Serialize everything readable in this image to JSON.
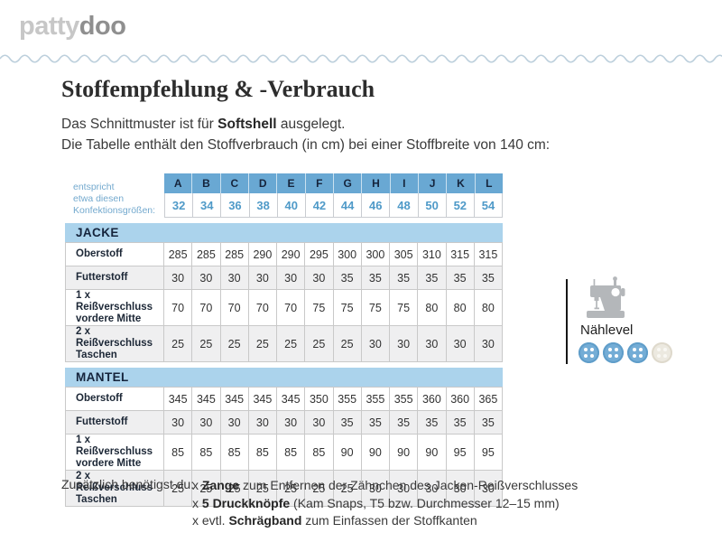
{
  "logo": {
    "part1": "patty",
    "part2": "doo"
  },
  "title": "Stoffempfehlung & -Verbrauch",
  "intro": {
    "line1_prefix": "Das Schnittmuster ist für ",
    "line1_bold": "Softshell",
    "line1_suffix": " ausgelegt.",
    "line2": "Die Tabelle enthält den Stoffverbrauch (in cm) bei einer Stoffbreite von 140 cm:"
  },
  "size_header": {
    "note_lines": [
      "entspricht",
      "etwa diesen",
      "Konfektionsgrößen:"
    ],
    "letters": [
      "A",
      "B",
      "C",
      "D",
      "E",
      "F",
      "G",
      "H",
      "I",
      "J",
      "K",
      "L"
    ],
    "sizes": [
      "32",
      "34",
      "36",
      "38",
      "40",
      "42",
      "44",
      "46",
      "48",
      "50",
      "52",
      "54"
    ]
  },
  "sections": [
    {
      "name": "JACKE",
      "rows": [
        {
          "label": "Oberstoff",
          "label2": "",
          "values": [
            285,
            285,
            285,
            290,
            290,
            295,
            300,
            300,
            305,
            310,
            315,
            315
          ]
        },
        {
          "label": "Futterstoff",
          "label2": "",
          "values": [
            30,
            30,
            30,
            30,
            30,
            30,
            35,
            35,
            35,
            35,
            35,
            35
          ]
        },
        {
          "label": "1 x Reißverschluss",
          "label2": "vordere Mitte",
          "values": [
            70,
            70,
            70,
            70,
            70,
            75,
            75,
            75,
            75,
            80,
            80,
            80
          ]
        },
        {
          "label": "2 x Reißverschluss",
          "label2": "Taschen",
          "values": [
            25,
            25,
            25,
            25,
            25,
            25,
            25,
            30,
            30,
            30,
            30,
            30
          ]
        }
      ]
    },
    {
      "name": "MANTEL",
      "rows": [
        {
          "label": "Oberstoff",
          "label2": "",
          "values": [
            345,
            345,
            345,
            345,
            345,
            350,
            355,
            355,
            355,
            360,
            360,
            365
          ]
        },
        {
          "label": "Futterstoff",
          "label2": "",
          "values": [
            30,
            30,
            30,
            30,
            30,
            30,
            35,
            35,
            35,
            35,
            35,
            35
          ]
        },
        {
          "label": "1 x Reißverschluss",
          "label2": "vordere Mitte",
          "values": [
            85,
            85,
            85,
            85,
            85,
            85,
            90,
            90,
            90,
            90,
            95,
            95
          ]
        },
        {
          "label": "2 x Reißverschluss",
          "label2": "Taschen",
          "values": [
            25,
            25,
            25,
            25,
            25,
            25,
            25,
            30,
            30,
            30,
            30,
            30
          ]
        }
      ]
    }
  ],
  "naehlevel": {
    "label": "Nählevel",
    "filled": 3,
    "total": 4,
    "states": [
      "filled",
      "filled",
      "filled",
      "empty"
    ]
  },
  "footer": {
    "intro": "Zusätzlich benötigst du:",
    "items": [
      {
        "prefix": "x ",
        "bold": "Zange",
        "rest": " zum Entfernen der Zähnchen des Jacken-Reißverschlusses"
      },
      {
        "prefix": "x ",
        "bold": "5 Druckknöpfe",
        "rest": " (Kam Snaps, T5 bzw. Durchmesser 12–15 mm)"
      },
      {
        "prefix": "x evtl. ",
        "bold": "Schrägband",
        "rest": " zum Einfassen der Stoffkanten"
      }
    ]
  },
  "colors": {
    "header_blue": "#69a8d3",
    "section_bar_blue": "#abd3ec",
    "size_number_blue": "#4f9ac8",
    "note_blue": "#73a9ce",
    "row_alt_gray": "#efeff0",
    "wave_blue": "#bccfdc",
    "button_blue": "#74add6",
    "button_beige": "#ece9e0",
    "logo_light_gray": "#c7c7c7",
    "logo_dark_gray": "#8f8f8f"
  }
}
